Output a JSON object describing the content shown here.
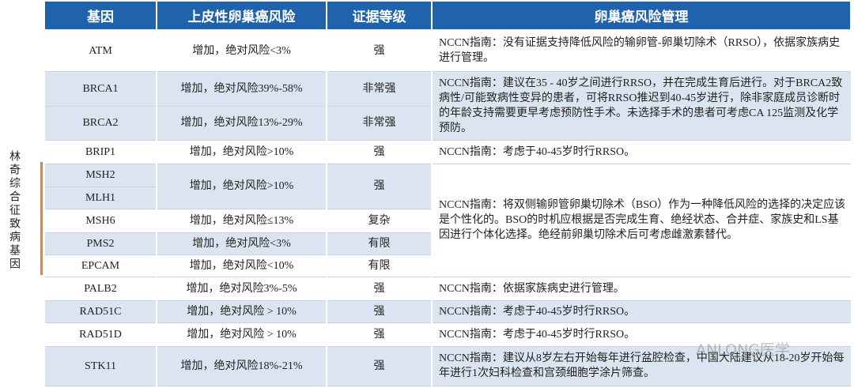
{
  "side_label": "林奇综合征致病基因",
  "table": {
    "header": [
      "基因",
      "上皮性卵巢癌风险",
      "证据等级",
      "卵巢癌风险管理"
    ],
    "rows": [
      {
        "gene": "ATM",
        "risk": "增加，绝对风险<3%",
        "evidence": "强",
        "management": "NCCN指南：没有证据支持降低风险的输卵管-卵巢切除术（RRSO），依据家族病史进行管理。"
      },
      {
        "gene": "BRCA1",
        "risk": "增加，绝对风险39%-58%",
        "evidence": "非常强",
        "management": "NCCN指南：建议在35 - 40岁之间进行RRSO，并在完成生育后进行。对于BRCA2致病性/可能致病性变异的患者，可将RRSO推迟到40-45岁进行，除非家庭成员诊断时的年龄支持需要更早考虑预防性手术。未选择手术的患者可考虑CA 125监测及化学预防。"
      },
      {
        "gene": "BRCA2",
        "risk": "增加，绝对风险13%-29%",
        "evidence": "非常强"
      },
      {
        "gene": "BRIP1",
        "risk": "增加，绝对风险>10%",
        "evidence": "强",
        "management": "NCCN指南：考虑于40-45岁时行RRSO。"
      },
      {
        "gene": "MSH2",
        "risk": "增加，绝对风险>10%",
        "evidence": "强",
        "management": "NCCN指南：将双侧输卵管卵巢切除术（BSO）作为一种降低风险的选择的决定应该是个性化的。BSO的时机应根据是否完成生育、绝经状态、合并症、家族史和LS基因进行个体化选择。绝经前卵巢切除术后可考虑雌激素替代。"
      },
      {
        "gene": "MLH1"
      },
      {
        "gene": "MSH6",
        "risk": "增加，绝对风险≤13%",
        "evidence": "复杂"
      },
      {
        "gene": "PMS2",
        "risk": "增加，绝对风险<3%",
        "evidence": "有限"
      },
      {
        "gene": "EPCAM",
        "risk": "增加，绝对风险<10%",
        "evidence": "有限"
      },
      {
        "gene": "PALB2",
        "risk": "增加，绝对风险3%-5%",
        "evidence": "强",
        "management": "NCCN指南：依据家族病史进行管理。"
      },
      {
        "gene": "RAD51C",
        "risk": "增加，绝对风险 > 10%",
        "evidence": "强",
        "management": "NCCN指南：考虑于40-45岁时行RRSO。"
      },
      {
        "gene": "RAD51D",
        "risk": "增加，绝对风险 > 10%",
        "evidence": "强",
        "management": "NCCN指南：考虑于40-45岁时行RRSO。"
      },
      {
        "gene": "STK11",
        "risk": "增加，绝对风险18%-21%",
        "evidence": "强",
        "management": "NCCN指南：建议从8岁左右开始每年进行盆腔检查，中国大陆建议从18-20岁开始每年进行1次妇科检查和宫颈细胞学涂片筛查。"
      }
    ]
  },
  "watermark": "ANLONG医学"
}
